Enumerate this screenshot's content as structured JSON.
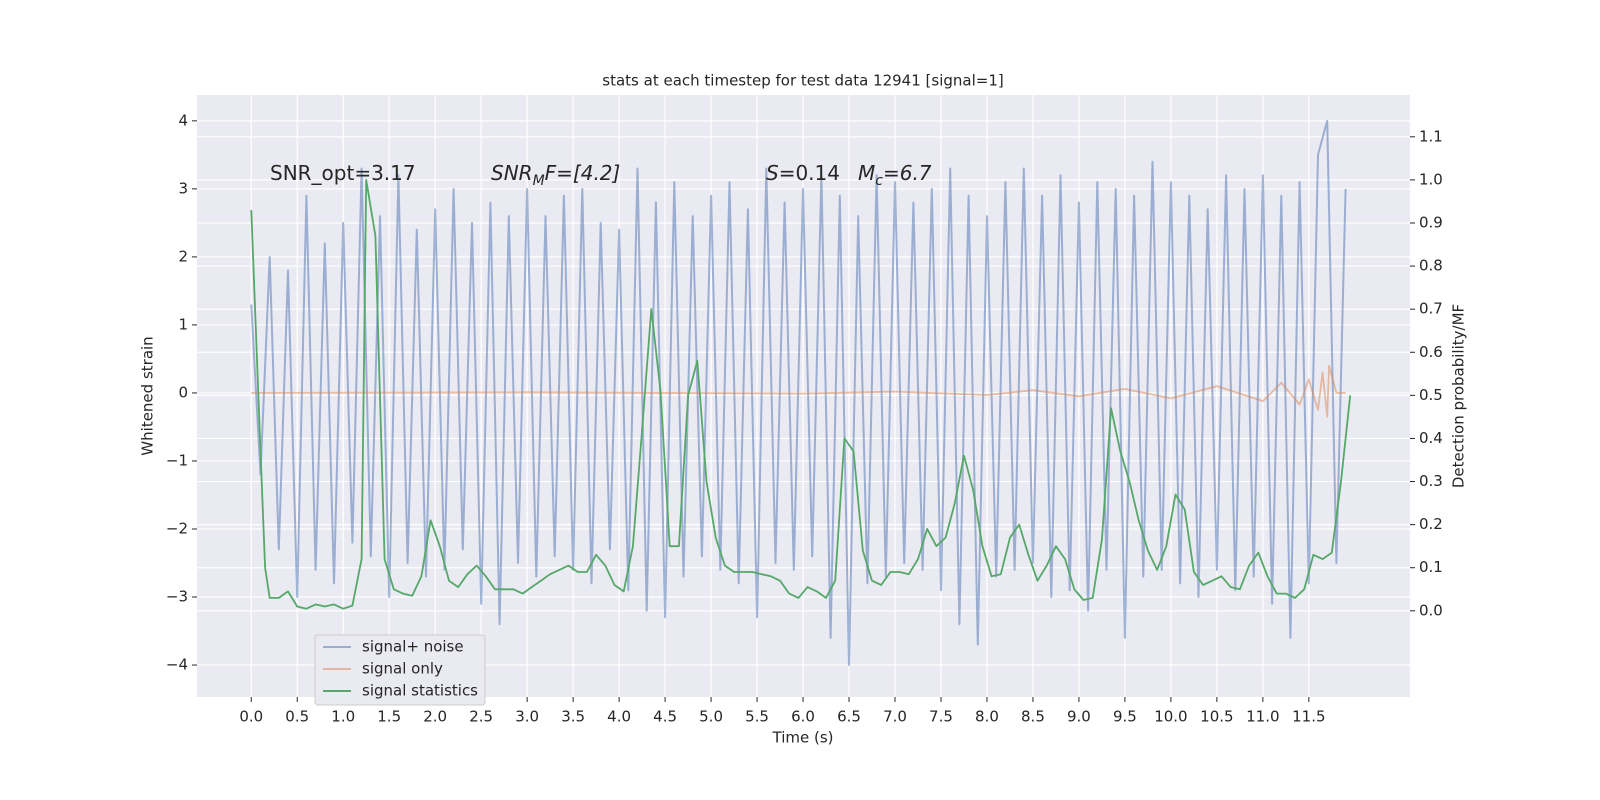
{
  "chart_data": {
    "type": "line",
    "title": "stats at each timestep for test data 12941 [signal=1]",
    "x_label": "Time (s)",
    "y_label": "Whitened strain",
    "y2_label": "Detection probability/MF",
    "xlim": [
      -0.59,
      12.6
    ],
    "ylim": [
      -4.47,
      4.38
    ],
    "y2lim": [
      -0.2,
      1.197
    ],
    "xticks": [
      {
        "value": 0,
        "label": "0.0"
      },
      0.5,
      {
        "value": 1,
        "label": "1.0"
      },
      1.5,
      {
        "value": 2,
        "label": "2.0"
      },
      2.5,
      {
        "value": 3,
        "label": "3.0"
      },
      3.5,
      {
        "value": 4,
        "label": "4.0"
      },
      4.5,
      {
        "value": 5,
        "label": "5.0"
      },
      5.5,
      {
        "value": 6,
        "label": "6.0"
      },
      6.5,
      {
        "value": 7,
        "label": "7.0"
      },
      7.5,
      {
        "value": 8,
        "label": "8.0"
      },
      8.5,
      {
        "value": 9,
        "label": "9.0"
      },
      9.5,
      {
        "value": 10,
        "label": "10.0"
      },
      10.5,
      {
        "value": 11,
        "label": "11.0"
      },
      11.5
    ],
    "yticks": [
      {
        "value": -4,
        "label": "−4"
      },
      {
        "value": -3,
        "label": "−3"
      },
      {
        "value": -2,
        "label": "−2"
      },
      {
        "value": -1,
        "label": "−1"
      },
      0,
      1,
      2,
      3,
      4
    ],
    "y2ticks": [
      {
        "value": 0,
        "label": "0.0"
      },
      0.1,
      0.2,
      0.3,
      0.4,
      0.5,
      0.6,
      0.7,
      0.8,
      0.9,
      {
        "value": 1,
        "label": "1.0"
      },
      1.1
    ],
    "grid": true,
    "legend": "lower left",
    "annotations": [
      {
        "text": "SNR_opt=3.17"
      },
      {
        "main": "SNR",
        "sub": "M",
        "rest": "F=[4.2]"
      },
      {
        "main": "S",
        "rest": "=0.14"
      },
      {
        "main": "M",
        "sub": "c",
        "rest": "=6.7"
      }
    ],
    "series": [
      {
        "name": "signal+ noise",
        "color": "#4c72b0",
        "opacity": 0.5,
        "x": [
          0,
          0.1,
          0.2,
          0.3,
          0.4,
          0.5,
          0.6,
          0.7,
          0.8,
          0.9,
          1,
          1.1,
          1.2,
          1.3,
          1.4,
          1.5,
          1.6,
          1.7,
          1.8,
          1.9,
          2,
          2.1,
          2.2,
          2.3,
          2.4,
          2.5,
          2.6,
          2.7,
          2.8,
          2.9,
          3,
          3.1,
          3.2,
          3.3,
          3.4,
          3.5,
          3.6,
          3.7,
          3.8,
          3.9,
          4,
          4.1,
          4.2,
          4.3,
          4.4,
          4.5,
          4.6,
          4.7,
          4.8,
          4.9,
          5,
          5.1,
          5.2,
          5.3,
          5.4,
          5.5,
          5.6,
          5.7,
          5.8,
          5.9,
          6,
          6.1,
          6.2,
          6.3,
          6.4,
          6.5,
          6.6,
          6.7,
          6.8,
          6.9,
          7,
          7.1,
          7.2,
          7.3,
          7.4,
          7.5,
          7.6,
          7.7,
          7.8,
          7.9,
          8,
          8.1,
          8.2,
          8.3,
          8.4,
          8.5,
          8.6,
          8.7,
          8.8,
          8.9,
          9,
          9.1,
          9.2,
          9.3,
          9.4,
          9.5,
          9.6,
          9.7,
          9.8,
          9.9,
          10,
          10.1,
          10.2,
          10.3,
          10.4,
          10.5,
          10.6,
          10.7,
          10.8,
          10.9,
          11,
          11.1,
          11.2,
          11.3,
          11.4,
          11.5,
          11.6,
          11.7,
          11.8,
          11.9
        ],
        "values": [
          1.3,
          -1.2,
          2.0,
          -2.3,
          1.8,
          -3.0,
          2.9,
          -2.6,
          2.2,
          -2.8,
          2.5,
          -2.2,
          3.3,
          -2.4,
          2.6,
          -3.0,
          3.2,
          -2.5,
          2.4,
          -2.7,
          2.7,
          -2.6,
          3.0,
          -2.3,
          2.5,
          -3.1,
          2.8,
          -3.4,
          2.6,
          -2.5,
          3.0,
          -2.7,
          2.6,
          -2.4,
          2.9,
          -2.6,
          3.0,
          -2.8,
          2.5,
          -2.3,
          2.4,
          -2.9,
          3.3,
          -3.2,
          2.8,
          -3.3,
          3.1,
          -2.7,
          2.6,
          -2.4,
          2.9,
          -2.6,
          3.1,
          -2.8,
          2.7,
          -3.3,
          3.3,
          -2.5,
          2.8,
          -2.6,
          3.0,
          -2.4,
          3.2,
          -3.6,
          2.9,
          -4.0,
          2.6,
          -2.8,
          3.2,
          -2.7,
          3.1,
          -2.5,
          2.8,
          -2.6,
          3.0,
          -2.9,
          3.3,
          -3.4,
          2.9,
          -3.7,
          2.6,
          -2.7,
          3.1,
          -2.6,
          3.3,
          -2.5,
          2.9,
          -3.0,
          3.2,
          -2.9,
          2.8,
          -3.2,
          3.1,
          -2.6,
          3.0,
          -3.6,
          2.9,
          -2.7,
          3.4,
          -2.6,
          3.1,
          -2.8,
          2.9,
          -3.0,
          2.7,
          -2.6,
          3.2,
          -2.9,
          3.0,
          -2.7,
          3.2,
          -3.1,
          2.9,
          -3.6,
          3.1,
          -2.8,
          3.5,
          4.0,
          -2.5,
          3.0
        ]
      },
      {
        "name": "signal only",
        "color": "#dd8452",
        "opacity": 0.5,
        "x": [
          0,
          3,
          6,
          7,
          8,
          8.5,
          9,
          9.5,
          10,
          10.5,
          11,
          11.2,
          11.4,
          11.5,
          11.6,
          11.65,
          11.7,
          11.72,
          11.8,
          11.9
        ],
        "values": [
          0,
          0.01,
          -0.01,
          0.02,
          -0.03,
          0.04,
          -0.05,
          0.06,
          -0.08,
          0.1,
          -0.12,
          0.15,
          -0.17,
          0.2,
          -0.25,
          0.3,
          -0.35,
          0.4,
          0,
          0
        ]
      },
      {
        "name": "signal statistics",
        "color": "#55a868",
        "opacity": 1,
        "axis": "y2",
        "x": [
          0,
          0.1,
          0.15,
          0.2,
          0.3,
          0.4,
          0.5,
          0.6,
          0.7,
          0.8,
          0.9,
          1,
          1.1,
          1.2,
          1.25,
          1.35,
          1.45,
          1.55,
          1.65,
          1.75,
          1.85,
          1.95,
          2.05,
          2.15,
          2.25,
          2.35,
          2.45,
          2.55,
          2.65,
          2.75,
          2.85,
          2.95,
          3.05,
          3.15,
          3.25,
          3.35,
          3.45,
          3.55,
          3.65,
          3.75,
          3.85,
          3.95,
          4.05,
          4.15,
          4.25,
          4.35,
          4.45,
          4.55,
          4.65,
          4.75,
          4.85,
          4.95,
          5.05,
          5.15,
          5.25,
          5.35,
          5.45,
          5.55,
          5.65,
          5.75,
          5.85,
          5.95,
          6.05,
          6.15,
          6.25,
          6.35,
          6.45,
          6.55,
          6.65,
          6.75,
          6.85,
          6.95,
          7.05,
          7.15,
          7.25,
          7.35,
          7.45,
          7.55,
          7.65,
          7.75,
          7.85,
          7.95,
          8.05,
          8.15,
          8.25,
          8.35,
          8.45,
          8.55,
          8.65,
          8.75,
          8.85,
          8.95,
          9.05,
          9.15,
          9.25,
          9.35,
          9.45,
          9.55,
          9.65,
          9.75,
          9.85,
          9.95,
          10.05,
          10.15,
          10.25,
          10.35,
          10.45,
          10.55,
          10.65,
          10.75,
          10.85,
          10.95,
          11.05,
          11.15,
          11.25,
          11.35,
          11.45,
          11.55,
          11.65,
          11.75,
          11.85,
          11.95
        ],
        "values": [
          0.93,
          0.37,
          0.1,
          0.03,
          0.03,
          0.045,
          0.01,
          0.005,
          0.015,
          0.01,
          0.015,
          0.005,
          0.012,
          0.12,
          1.0,
          0.87,
          0.12,
          0.05,
          0.04,
          0.035,
          0.08,
          0.21,
          0.15,
          0.07,
          0.055,
          0.085,
          0.105,
          0.08,
          0.05,
          0.05,
          0.05,
          0.04,
          0.055,
          0.07,
          0.085,
          0.095,
          0.105,
          0.09,
          0.09,
          0.13,
          0.105,
          0.06,
          0.045,
          0.15,
          0.42,
          0.7,
          0.51,
          0.15,
          0.15,
          0.5,
          0.58,
          0.3,
          0.17,
          0.105,
          0.09,
          0.09,
          0.09,
          0.085,
          0.08,
          0.07,
          0.04,
          0.03,
          0.055,
          0.045,
          0.03,
          0.07,
          0.4,
          0.37,
          0.14,
          0.07,
          0.06,
          0.09,
          0.09,
          0.085,
          0.12,
          0.19,
          0.15,
          0.17,
          0.25,
          0.36,
          0.28,
          0.15,
          0.08,
          0.085,
          0.17,
          0.2,
          0.13,
          0.07,
          0.105,
          0.15,
          0.12,
          0.05,
          0.025,
          0.03,
          0.165,
          0.47,
          0.37,
          0.3,
          0.21,
          0.14,
          0.095,
          0.15,
          0.27,
          0.235,
          0.09,
          0.06,
          0.07,
          0.08,
          0.055,
          0.05,
          0.105,
          0.135,
          0.08,
          0.04,
          0.04,
          0.03,
          0.05,
          0.13,
          0.12,
          0.135,
          0.3,
          0.5
        ]
      }
    ]
  }
}
